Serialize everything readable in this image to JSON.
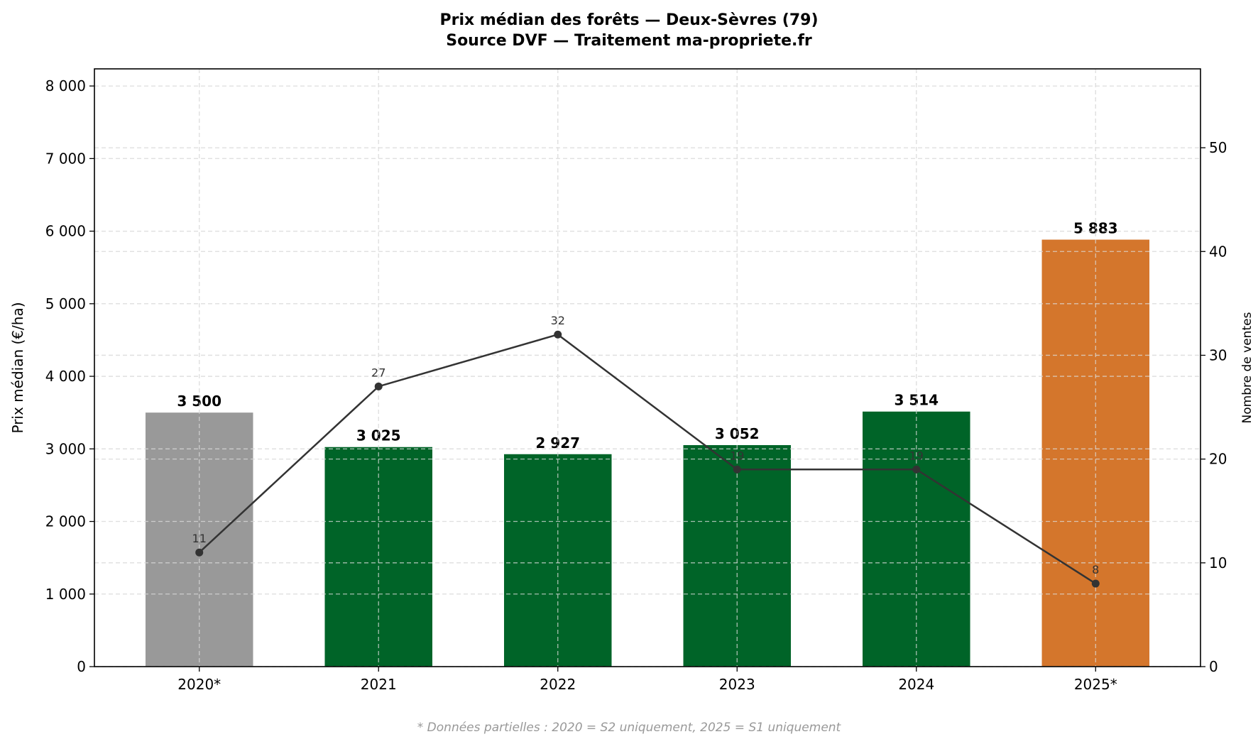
{
  "chart_data": {
    "type": "bar",
    "title": "Prix médian des forêts — Deux-Sèvres (79)",
    "subtitle": "Source DVF — Traitement ma-propriete.fr",
    "categories": [
      "2020*",
      "2021",
      "2022",
      "2023",
      "2024",
      "2025*"
    ],
    "bar_series": {
      "values": [
        3500,
        3025,
        2927,
        3052,
        3514,
        5883
      ],
      "labels": [
        "3 500",
        "3 025",
        "2 927",
        "3 052",
        "3 514",
        "5 883"
      ],
      "colors": [
        "#999999",
        "#006428",
        "#006428",
        "#006428",
        "#006428",
        "#D4762C"
      ]
    },
    "line_series": {
      "values": [
        11,
        27,
        32,
        19,
        19,
        8
      ],
      "labels": [
        "11",
        "27",
        "32",
        "19",
        "19",
        "8"
      ],
      "color": "#333333"
    },
    "ylabel": "Prix médian (€/ha)",
    "y2label": "Nombre de ventes",
    "ylim": [
      0,
      8236
    ],
    "y2lim": [
      0,
      57.6
    ],
    "yticks": [
      0,
      1000,
      2000,
      3000,
      4000,
      5000,
      6000,
      7000,
      8000
    ],
    "ytick_labels": [
      "0",
      "1 000",
      "2 000",
      "3 000",
      "4 000",
      "5 000",
      "6 000",
      "7 000",
      "8 000"
    ],
    "y2ticks": [
      0,
      10,
      20,
      30,
      40,
      50
    ],
    "y2tick_labels": [
      "0",
      "10",
      "20",
      "30",
      "40",
      "50"
    ],
    "grid": true,
    "footnote": "* Données partielles : 2020 = S2 uniquement, 2025 = S1 uniquement"
  }
}
